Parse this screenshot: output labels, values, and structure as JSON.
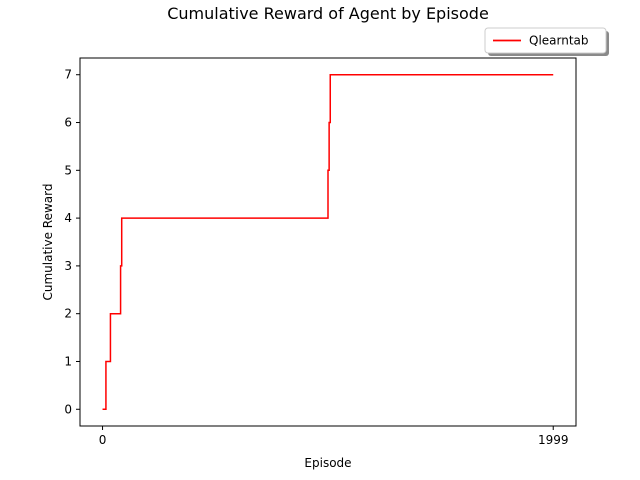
{
  "chart_data": {
    "type": "line",
    "title": "Cumulative Reward of Agent by Episode",
    "xlabel": "Episode",
    "ylabel": "Cumulative Reward",
    "xlim": [
      -100,
      2100
    ],
    "ylim": [
      -0.35,
      7.35
    ],
    "xticks": [
      0,
      1999
    ],
    "xtick_labels": [
      "0",
      "1999"
    ],
    "yticks": [
      0,
      1,
      2,
      3,
      4,
      5,
      6,
      7
    ],
    "grid": false,
    "legend_position": "top-right, above axes",
    "series": [
      {
        "name": "Qlearntab",
        "color": "#ff0000",
        "drawstyle": "steps-post",
        "x": [
          0,
          15,
          35,
          80,
          85,
          95,
          1000,
          1005,
          1010,
          1999
        ],
        "y": [
          0,
          1,
          2,
          3,
          4,
          4,
          5,
          6,
          7,
          7
        ]
      }
    ]
  }
}
